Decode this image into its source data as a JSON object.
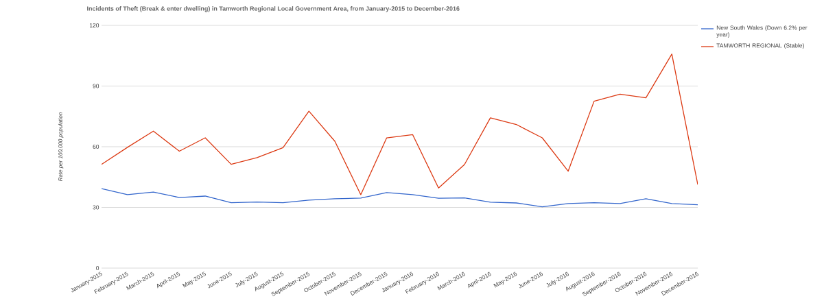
{
  "chart_data": {
    "type": "line",
    "title": "Incidents of Theft (Break & enter dwelling) in Tamworth Regional Local Government Area, from January-2015 to December-2016",
    "ylabel": "Rate per 100,000 population",
    "categories": [
      "January-2015",
      "February-2015",
      "March-2015",
      "April-2015",
      "May-2015",
      "June-2015",
      "July-2015",
      "August-2015",
      "September-2015",
      "October-2015",
      "November-2015",
      "December-2015",
      "January-2016",
      "February-2016",
      "March-2016",
      "April-2016",
      "May-2016",
      "June-2016",
      "July-2016",
      "August-2016",
      "September-2016",
      "October-2016",
      "November-2016",
      "December-2016"
    ],
    "series": [
      {
        "name": "New South Wales (Down 6.2% per year)",
        "color": "#3366cc",
        "values": [
          39.3,
          36.3,
          37.6,
          34.9,
          35.6,
          32.3,
          32.7,
          32.3,
          33.6,
          34.3,
          34.6,
          37.3,
          36.3,
          34.5,
          34.7,
          32.6,
          32.2,
          30.3,
          31.9,
          32.3,
          31.9,
          34.3,
          31.9,
          31.3
        ]
      },
      {
        "name": "TAMWORTH REGIONAL (Stable)",
        "color": "#dc3912",
        "values": [
          51.3,
          59.7,
          67.7,
          57.8,
          64.4,
          51.3,
          54.6,
          59.5,
          77.6,
          62.7,
          36.3,
          64.4,
          66.0,
          39.6,
          51.2,
          74.3,
          71.0,
          64.4,
          47.9,
          82.5,
          86.0,
          84.2,
          105.8,
          41.3
        ]
      }
    ],
    "ylim": [
      0,
      120
    ],
    "yticks": [
      0,
      30,
      60,
      90,
      120
    ],
    "grid": "y",
    "legend": "right",
    "marker": "none",
    "line_style": "solid"
  }
}
